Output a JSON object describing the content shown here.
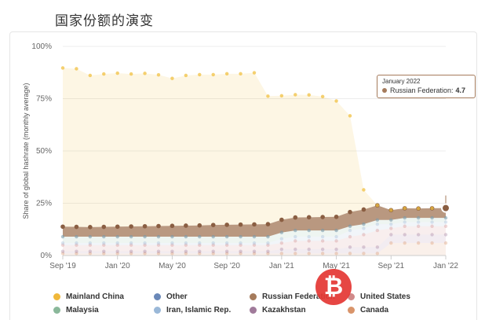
{
  "page_title": "国家份额的演变",
  "chart_data": {
    "type": "area",
    "stacked": true,
    "ylabel": "Share of global hashrate (monthly average)",
    "ylim": [
      0,
      100
    ],
    "y_ticks": [
      "0%",
      "25%",
      "50%",
      "75%",
      "100%"
    ],
    "x_ticks": [
      "Sep '19",
      "Jan '20",
      "May '20",
      "Sep '20",
      "Jan '21",
      "May '21",
      "Sep '21",
      "Jan '22"
    ],
    "x": [
      "2019-09",
      "2019-10",
      "2019-11",
      "2019-12",
      "2020-01",
      "2020-02",
      "2020-03",
      "2020-04",
      "2020-05",
      "2020-06",
      "2020-07",
      "2020-08",
      "2020-09",
      "2020-10",
      "2020-11",
      "2020-12",
      "2021-01",
      "2021-02",
      "2021-03",
      "2021-04",
      "2021-05",
      "2021-06",
      "2021-07",
      "2021-08",
      "2021-09",
      "2021-10",
      "2021-11",
      "2021-12",
      "2022-01"
    ],
    "grid": true,
    "legend_position": "bottom",
    "series": [
      {
        "name": "Canada",
        "color": "#d9946a",
        "values": [
          1,
          1,
          1,
          1,
          1,
          1,
          1,
          1,
          1,
          1,
          1,
          1,
          1,
          1,
          1,
          1,
          1,
          1,
          1,
          1,
          1,
          1,
          1,
          1,
          6,
          6,
          6,
          6,
          6
        ]
      },
      {
        "name": "Kazakhstan",
        "color": "#a07a9a",
        "values": [
          1,
          1,
          1,
          1,
          1,
          1,
          1,
          1,
          1,
          1,
          1,
          1,
          1,
          1,
          1,
          1,
          2,
          2,
          2,
          2,
          2,
          3,
          3,
          3,
          4,
          4,
          4,
          4,
          4
        ]
      },
      {
        "name": "United States",
        "color": "#d08a8a",
        "values": [
          3,
          3,
          3,
          3,
          3,
          3,
          3,
          3,
          3,
          3,
          3,
          3,
          3,
          3,
          3,
          3,
          3,
          4,
          4,
          4,
          4,
          5,
          6,
          8,
          3,
          4,
          4,
          4,
          4
        ]
      },
      {
        "name": "Iran, Islamic Rep.",
        "color": "#9ab8d8",
        "values": [
          1,
          1,
          1,
          1,
          1,
          1,
          1,
          1,
          1,
          1,
          1,
          1,
          1,
          1,
          1,
          1,
          2,
          2,
          2,
          2,
          2,
          3,
          3,
          3,
          2,
          2,
          2,
          2,
          2
        ]
      },
      {
        "name": "Malaysia",
        "color": "#8ab89a",
        "values": [
          3,
          3,
          3,
          3,
          3,
          3,
          3,
          3,
          3,
          3,
          3,
          3,
          3,
          3,
          3,
          3,
          3,
          3,
          3,
          3,
          3,
          2,
          2,
          2,
          2,
          2,
          2,
          2,
          2
        ]
      },
      {
        "name": "Other",
        "color": "#6a88b8",
        "values": [
          0,
          0,
          0,
          0,
          0,
          0,
          0,
          0,
          0,
          0,
          0,
          0,
          0,
          0,
          0,
          0,
          0,
          0,
          0,
          0,
          0,
          0,
          0,
          0,
          0,
          0,
          0,
          0,
          0
        ]
      },
      {
        "name": "Russian Federation",
        "color": "#a57b5c",
        "values": [
          4.8,
          4.7,
          4.6,
          4.7,
          4.8,
          4.9,
          5,
          5.1,
          5.2,
          5.3,
          5.4,
          5.6,
          5.7,
          5.8,
          5.9,
          6,
          6.1,
          6.2,
          6.3,
          6.4,
          6.5,
          6.8,
          7,
          7,
          4.7,
          4.6,
          4.5,
          4.6,
          4.7
        ]
      },
      {
        "name": "Mainland China",
        "color": "#f0c040",
        "values": [
          75.9,
          75.6,
          72.5,
          73.1,
          73.4,
          72.9,
          73.1,
          72.3,
          70.5,
          71.8,
          72.1,
          71.9,
          72.2,
          72.1,
          72.5,
          61.2,
          59.3,
          58.7,
          58.5,
          57.6,
          55.4,
          46,
          9.4,
          0,
          0,
          0,
          0,
          0,
          0
        ]
      }
    ]
  },
  "legend": [
    {
      "label": "Mainland China",
      "color": "#f0b83a"
    },
    {
      "label": "Other",
      "color": "#6a88b8"
    },
    {
      "label": "Russian Federation",
      "color": "#a57b5c"
    },
    {
      "label": "United States",
      "color": "#d08a8a"
    },
    {
      "label": "Malaysia",
      "color": "#8ab89a"
    },
    {
      "label": "Iran, Islamic Rep.",
      "color": "#9ab8d8"
    },
    {
      "label": "Kazakhstan",
      "color": "#a07a9a"
    },
    {
      "label": "Canada",
      "color": "#d9946a"
    }
  ],
  "tooltip": {
    "date": "January 2022",
    "series": "Russian Federation:",
    "value": "4.7"
  },
  "watermark": {
    "symbol": "₿"
  }
}
